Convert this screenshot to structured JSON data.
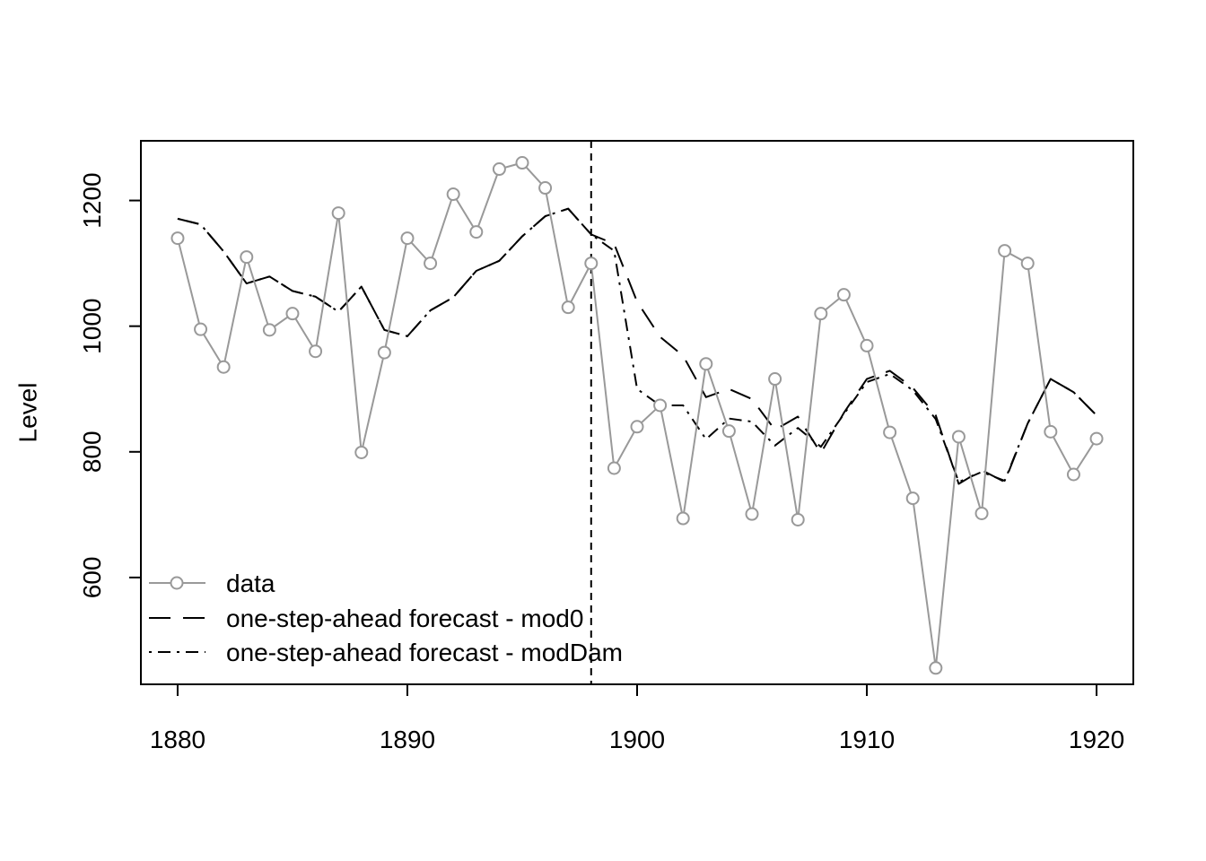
{
  "chart_data": {
    "type": "line",
    "title": "",
    "xlabel": "",
    "ylabel": "Level",
    "xlim": [
      1878.4,
      1921.6
    ],
    "ylim": [
      430,
      1295
    ],
    "x_ticks": [
      1880,
      1890,
      1900,
      1910,
      1920
    ],
    "y_ticks": [
      600,
      800,
      1000,
      1200
    ],
    "grid": false,
    "x": [
      1880,
      1881,
      1882,
      1883,
      1884,
      1885,
      1886,
      1887,
      1888,
      1889,
      1890,
      1891,
      1892,
      1893,
      1894,
      1895,
      1896,
      1897,
      1898,
      1899,
      1900,
      1901,
      1902,
      1903,
      1904,
      1905,
      1906,
      1907,
      1908,
      1909,
      1910,
      1911,
      1912,
      1913,
      1914,
      1915,
      1916,
      1917,
      1918,
      1919,
      1920
    ],
    "vertical_line": 1898,
    "series": [
      {
        "name": "data",
        "style": "line-points",
        "color": "#999999",
        "values": [
          1140,
          995,
          935,
          1110,
          994,
          1020,
          960,
          1180,
          799,
          958,
          1140,
          1100,
          1210,
          1150,
          1250,
          1260,
          1220,
          1030,
          1100,
          774,
          840,
          874,
          694,
          940,
          833,
          701,
          916,
          692,
          1020,
          1050,
          969,
          831,
          726,
          456,
          824,
          702,
          1120,
          1100,
          832,
          764,
          821
        ]
      },
      {
        "name": "one-step-ahead forecast - mod0",
        "style": "dashed",
        "color": "#000000",
        "values": [
          1171,
          1162,
          1119,
          1068,
          1079,
          1056,
          1047,
          1023,
          1063,
          994,
          984,
          1025,
          1046,
          1088,
          1104,
          1143,
          1175,
          1187,
          1146,
          1131,
          1039,
          983,
          953,
          887,
          900,
          884,
          835,
          856,
          798,
          862,
          916,
          929,
          902,
          858,
          749,
          771,
          752,
          845,
          916,
          895,
          858
        ]
      },
      {
        "name": "one-step-ahead forecast - modDam",
        "style": "dashdot",
        "color": "#000000",
        "values": [
          1171,
          1162,
          1119,
          1068,
          1079,
          1056,
          1047,
          1023,
          1063,
          994,
          984,
          1025,
          1046,
          1088,
          1104,
          1143,
          1175,
          1187,
          1146,
          1120,
          900,
          874,
          874,
          820,
          853,
          848,
          810,
          838,
          808,
          860,
          911,
          924,
          898,
          852,
          752,
          768,
          754,
          845,
          916,
          895,
          858
        ]
      }
    ],
    "legend_position": "bottom-left"
  }
}
